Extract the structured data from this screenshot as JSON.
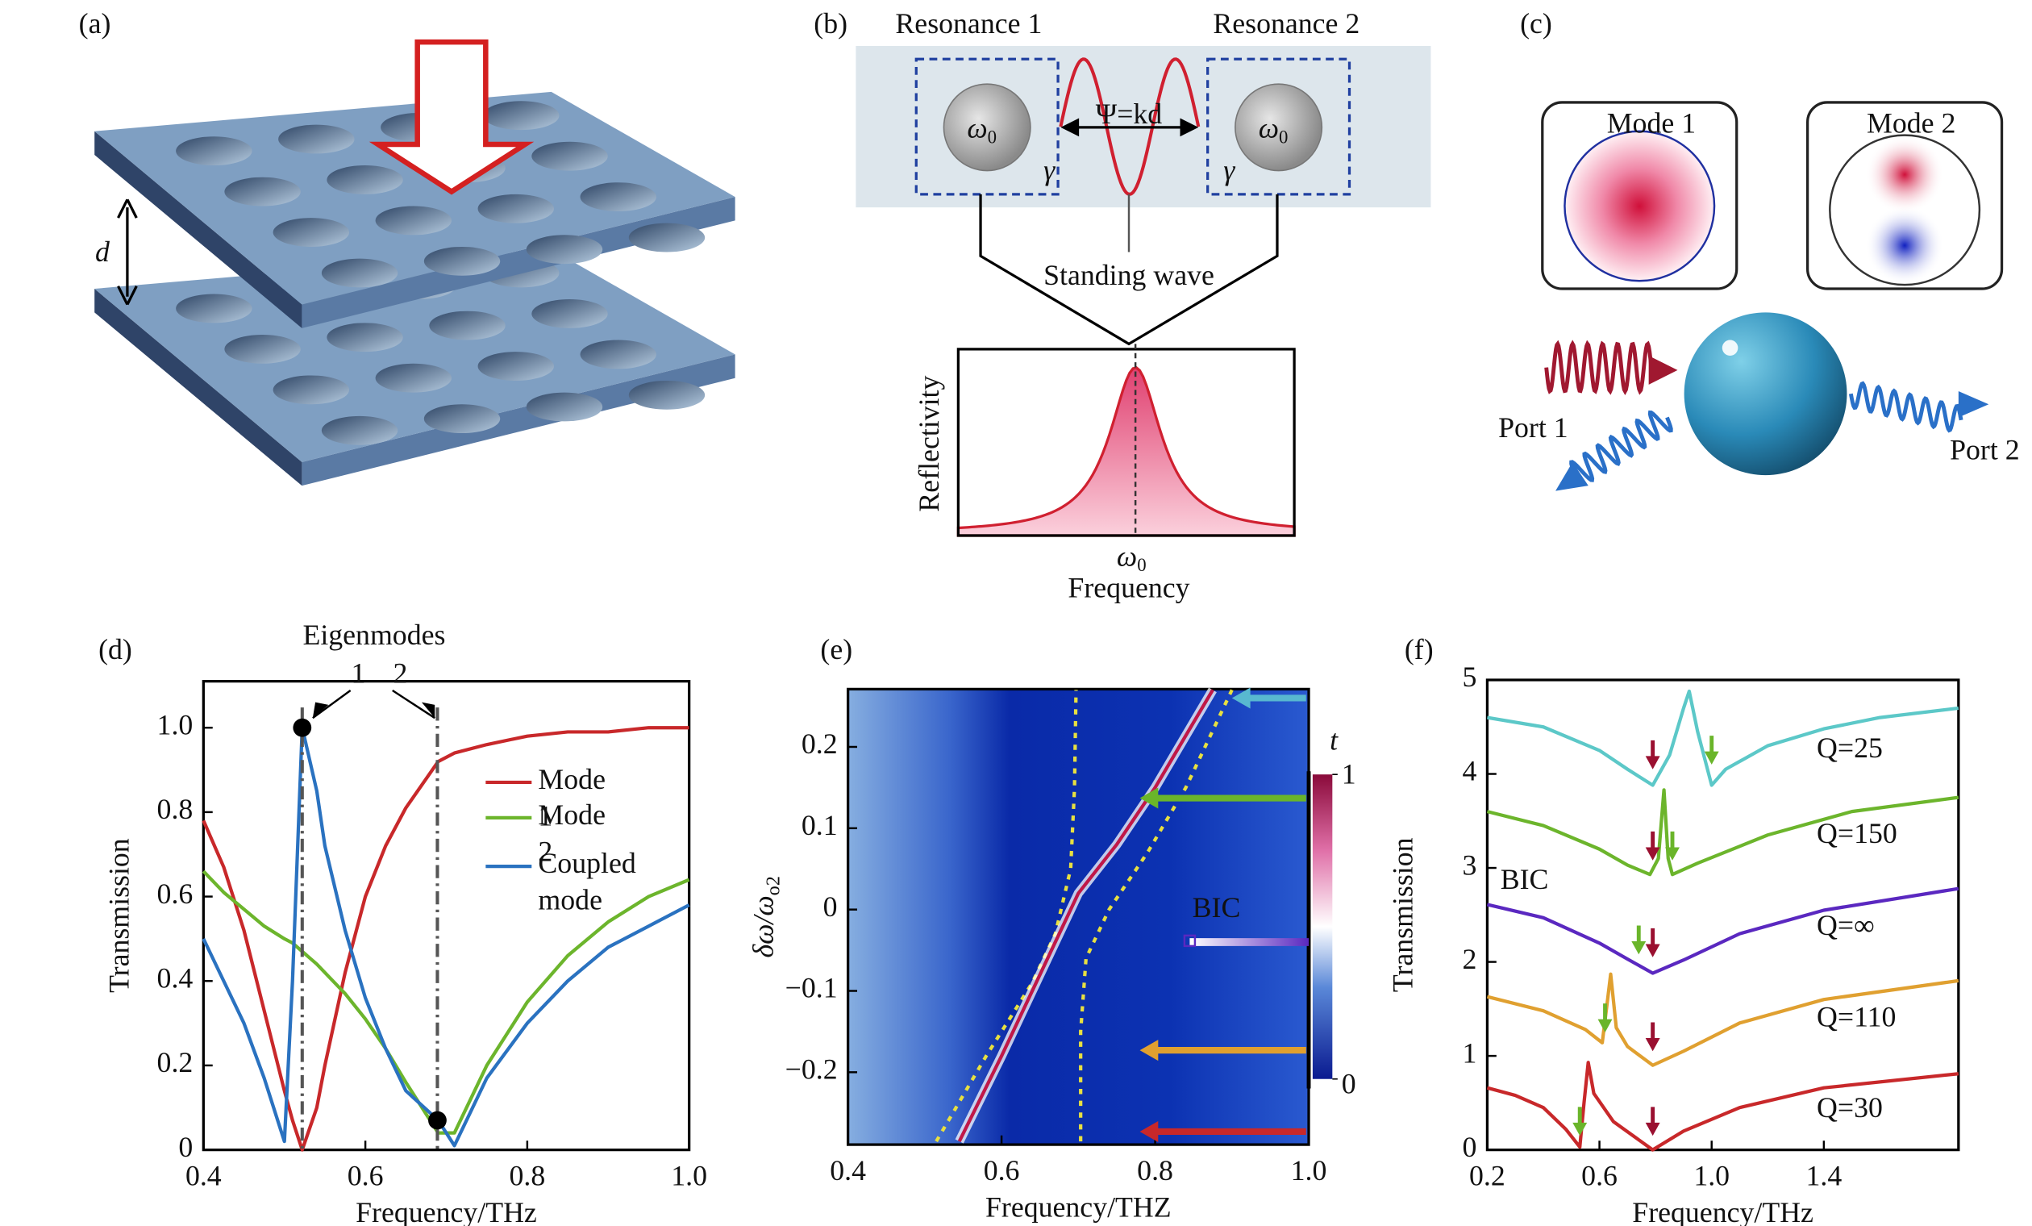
{
  "panels": {
    "a": {
      "label": "(a)",
      "gap": "d"
    },
    "b": {
      "label": "(b)",
      "resonance1": "Resonance 1",
      "resonance2": "Resonance 2",
      "omega": "ω",
      "omega_sub": "0",
      "decay": "γ",
      "phase": "Ψ=kd",
      "standing_wave": "Standing wave",
      "y_label": "Reflectivity",
      "x_label": "Frequency"
    },
    "c": {
      "label": "(c)",
      "mode1": "Mode 1",
      "mode2": "Mode 2",
      "port1": "Port 1",
      "port2": "Port 2"
    }
  },
  "chart_data": [
    {
      "type": "line",
      "label": "(d)",
      "x": [
        0.4,
        0.425,
        0.45,
        0.475,
        0.5,
        0.51,
        0.522,
        0.54,
        0.55,
        0.575,
        0.6,
        0.625,
        0.65,
        0.69,
        0.71,
        0.75,
        0.8,
        0.85,
        0.9,
        0.95,
        1.0
      ],
      "series": [
        {
          "name": "Mode 1",
          "color": "#c8282a",
          "values": [
            0.78,
            0.67,
            0.52,
            0.33,
            0.14,
            0.07,
            0.0,
            0.1,
            0.2,
            0.42,
            0.6,
            0.72,
            0.81,
            0.92,
            0.94,
            0.96,
            0.98,
            0.99,
            0.99,
            1.0,
            1.0
          ]
        },
        {
          "name": "Mode 2",
          "color": "#6cb52c",
          "values": [
            0.66,
            0.61,
            0.57,
            0.53,
            0.5,
            0.49,
            0.47,
            0.44,
            0.42,
            0.37,
            0.31,
            0.24,
            0.16,
            0.04,
            0.04,
            0.2,
            0.35,
            0.46,
            0.54,
            0.6,
            0.64
          ]
        },
        {
          "name": "Coupled mode",
          "color": "#2a72c0",
          "values": [
            0.5,
            0.4,
            0.3,
            0.17,
            0.02,
            0.4,
            1.0,
            0.85,
            0.72,
            0.52,
            0.36,
            0.24,
            0.14,
            0.07,
            0.01,
            0.17,
            0.3,
            0.4,
            0.48,
            0.53,
            0.58
          ]
        }
      ],
      "xlim": [
        0.4,
        1.0
      ],
      "xticks": [
        0.4,
        0.6,
        0.8,
        {
          "value": 1,
          "label": "1.0"
        }
      ],
      "ylim": [
        0,
        1.11
      ],
      "yticks": [
        0,
        0.2,
        0.4,
        0.6,
        0.8,
        {
          "value": 1,
          "label": "1.0"
        }
      ],
      "xlabel": "Frequency/THz",
      "ylabel": "Transmission",
      "legend": "upper right",
      "annotation": "Eigenmodes",
      "eigenmodes": [
        {
          "label": "1",
          "x": 0.522,
          "y": 1.0
        },
        {
          "label": "2",
          "x": 0.689,
          "y": 0.07
        }
      ]
    },
    {
      "type": "heatmap",
      "label": "(e)",
      "xlim": [
        0.4,
        1.0
      ],
      "xticks": [
        0.4,
        0.6,
        0.8,
        {
          "value": 1,
          "label": "1.0"
        }
      ],
      "ylim": [
        -0.289,
        0.271
      ],
      "yticks": [
        {
          "value": -0.2,
          "label": "−0.2"
        },
        {
          "value": -0.1,
          "label": "−0.1"
        },
        0,
        0.1,
        0.2
      ],
      "xlabel": "Frequency/THZ",
      "ylabel": "δω/ω",
      "ylabel_sub": "o2",
      "colorbar": {
        "label": "t",
        "ticks": [
          0,
          1
        ]
      },
      "series": [
        {
          "color": "#e8e040",
          "style": "dashed",
          "x": [
            0.515,
            0.58,
            0.64,
            0.67,
            0.69,
            0.695,
            0.697
          ],
          "values": [
            -0.285,
            -0.18,
            -0.09,
            -0.03,
            0.05,
            0.15,
            0.27
          ]
        },
        {
          "color": "#e8e040",
          "style": "dashed",
          "x": [
            0.703,
            0.703,
            0.71,
            0.74,
            0.79,
            0.84,
            0.9
          ],
          "values": [
            -0.285,
            -0.15,
            -0.06,
            0.0,
            0.07,
            0.15,
            0.27
          ]
        },
        {
          "color": "#c01848",
          "style": "solid",
          "x": [
            0.545,
            0.6,
            0.65,
            0.68,
            0.7,
            0.75,
            0.8,
            0.85,
            0.875
          ],
          "values": [
            -0.285,
            -0.18,
            -0.08,
            -0.02,
            0.02,
            0.08,
            0.15,
            0.23,
            0.27
          ]
        }
      ],
      "arrows": [
        {
          "y": 0.26,
          "x": 0.9,
          "color": "#58b8d0"
        },
        {
          "y": 0.137,
          "x": 0.78,
          "color": "#6ab52a"
        },
        {
          "y": -0.173,
          "x": 0.78,
          "color": "#e0a030"
        },
        {
          "y": -0.273,
          "x": 0.78,
          "color": "#c8282a"
        }
      ],
      "bic": {
        "label": "BIC",
        "x": 0.845,
        "y": -0.04,
        "color": "#5a28c0"
      }
    },
    {
      "type": "line",
      "label": "(f)",
      "series": [
        {
          "name": "Q=25",
          "color": "#5cc8c8",
          "x": [
            0.2,
            0.4,
            0.6,
            0.7,
            0.79,
            0.85,
            0.9,
            0.92,
            0.95,
            1.0,
            1.05,
            1.2,
            1.4,
            1.6,
            1.88
          ],
          "values": [
            4.6,
            4.5,
            4.25,
            4.05,
            3.88,
            4.2,
            4.7,
            4.88,
            4.45,
            3.88,
            4.05,
            4.3,
            4.48,
            4.6,
            4.7
          ]
        },
        {
          "name": "Q=150",
          "color": "#6cb52c",
          "x": [
            0.2,
            0.4,
            0.6,
            0.7,
            0.78,
            0.81,
            0.83,
            0.845,
            0.86,
            0.95,
            1.2,
            1.5,
            1.88
          ],
          "values": [
            3.6,
            3.45,
            3.2,
            3.03,
            2.93,
            3.1,
            3.83,
            3.1,
            2.93,
            3.05,
            3.35,
            3.6,
            3.75
          ]
        },
        {
          "name": "Q=∞",
          "color": "#5a28c0",
          "x": [
            0.2,
            0.4,
            0.6,
            0.7,
            0.79,
            0.9,
            1.1,
            1.4,
            1.88
          ],
          "values": [
            2.61,
            2.47,
            2.2,
            2.03,
            1.88,
            2.02,
            2.3,
            2.55,
            2.78
          ]
        },
        {
          "name": "Q=110",
          "color": "#e0a030",
          "x": [
            0.2,
            0.4,
            0.55,
            0.61,
            0.625,
            0.64,
            0.66,
            0.7,
            0.79,
            0.9,
            1.1,
            1.4,
            1.88
          ],
          "values": [
            1.63,
            1.48,
            1.28,
            1.14,
            1.5,
            1.87,
            1.3,
            1.1,
            0.9,
            1.05,
            1.35,
            1.6,
            1.8
          ]
        },
        {
          "name": "Q=30",
          "color": "#c8282a",
          "x": [
            0.2,
            0.3,
            0.4,
            0.48,
            0.53,
            0.545,
            0.56,
            0.58,
            0.65,
            0.79,
            0.9,
            1.1,
            1.4,
            1.88
          ],
          "values": [
            0.66,
            0.58,
            0.45,
            0.22,
            0.03,
            0.5,
            0.93,
            0.6,
            0.3,
            0.0,
            0.2,
            0.45,
            0.66,
            0.81
          ]
        }
      ],
      "xlim": [
        0.2,
        1.88
      ],
      "xticks": [
        0.2,
        0.6,
        {
          "value": 1,
          "label": "1.0"
        },
        1.4
      ],
      "ylim": [
        0,
        5
      ],
      "yticks": [
        0,
        1,
        2,
        3,
        4,
        5
      ],
      "xlabel": "Frequency/THz",
      "ylabel": "Transmission",
      "annotation": "BIC",
      "markers": [
        {
          "x": 0.79,
          "y": 4.05,
          "color": "#9a1030"
        },
        {
          "x": 1.0,
          "y": 4.1,
          "color": "#6ab52a"
        },
        {
          "x": 0.79,
          "y": 3.08,
          "color": "#9a1030"
        },
        {
          "x": 0.86,
          "y": 3.08,
          "color": "#6ab52a"
        },
        {
          "x": 0.79,
          "y": 2.05,
          "color": "#9a1030"
        },
        {
          "x": 0.74,
          "y": 2.08,
          "color": "#6ab52a"
        },
        {
          "x": 0.79,
          "y": 1.05,
          "color": "#9a1030"
        },
        {
          "x": 0.62,
          "y": 1.25,
          "color": "#6ab52a"
        },
        {
          "x": 0.79,
          "y": 0.15,
          "color": "#9a1030"
        },
        {
          "x": 0.53,
          "y": 0.15,
          "color": "#6ab52a"
        }
      ]
    }
  ]
}
